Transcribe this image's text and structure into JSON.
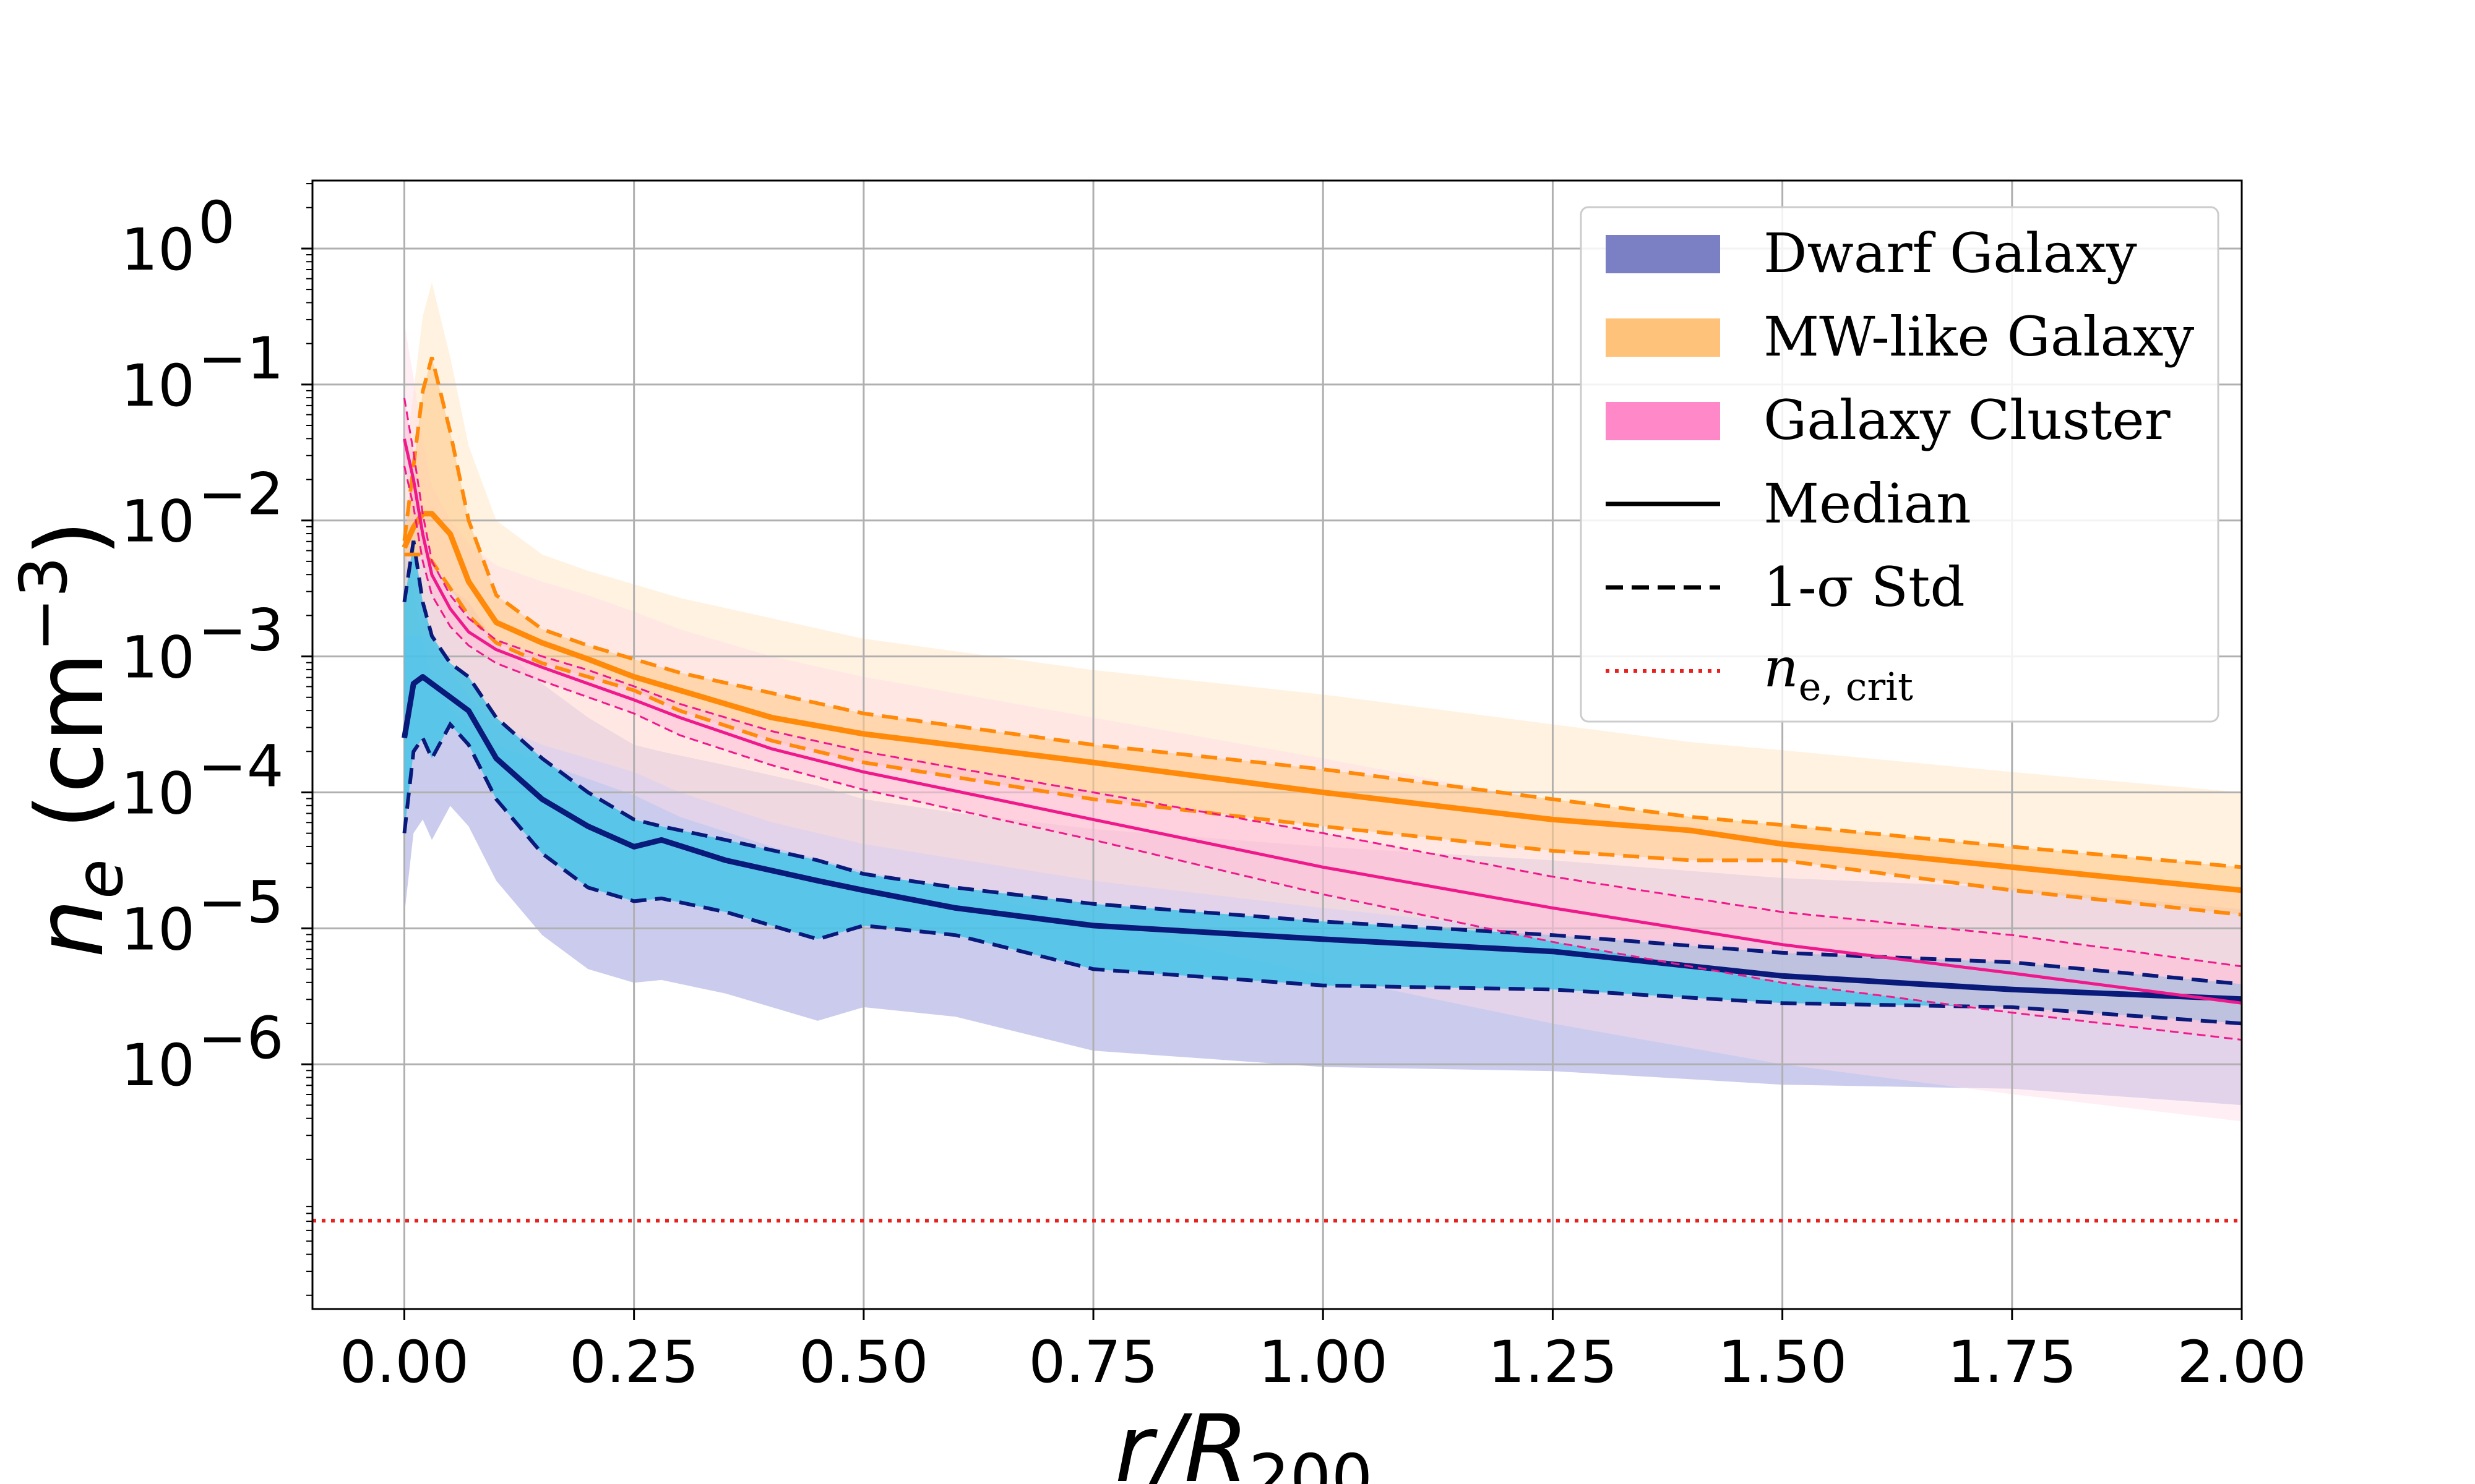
{
  "chart_data": {
    "type": "line",
    "title": "",
    "xlabel": "r/R200",
    "xlabel_main": "r/R",
    "xlabel_sub": "200",
    "ylabel": "n_e (cm^-3)",
    "ylabel_main": "n",
    "ylabel_sub": "e",
    "ylabel_unit_open": " (cm",
    "ylabel_unit_exp": "−3",
    "ylabel_unit_close": ")",
    "xlim": [
      -0.1,
      2.0
    ],
    "ylim_log10": [
      -7.8,
      0.5
    ],
    "grid": true,
    "legend_location": "top-right",
    "x_ticks": [
      {
        "value": 0.0,
        "label": "0.00"
      },
      {
        "value": 0.25,
        "label": "0.25"
      },
      {
        "value": 0.5,
        "label": "0.50"
      },
      {
        "value": 0.75,
        "label": "0.75"
      },
      {
        "value": 1.0,
        "label": "1.00"
      },
      {
        "value": 1.25,
        "label": "1.25"
      },
      {
        "value": 1.5,
        "label": "1.50"
      },
      {
        "value": 1.75,
        "label": "1.75"
      },
      {
        "value": 2.0,
        "label": "2.00"
      }
    ],
    "y_ticks": [
      {
        "value": 0,
        "base": "10",
        "exp": "0"
      },
      {
        "value": -1,
        "base": "10",
        "exp": "−1"
      },
      {
        "value": -2,
        "base": "10",
        "exp": "−2"
      },
      {
        "value": -3,
        "base": "10",
        "exp": "−3"
      },
      {
        "value": -4,
        "base": "10",
        "exp": "−4"
      },
      {
        "value": -5,
        "base": "10",
        "exp": "−5"
      },
      {
        "value": -6,
        "base": "10",
        "exp": "−6"
      }
    ],
    "legend": [
      {
        "label": "Dwarf Galaxy",
        "kind": "patch",
        "color": "#7b7fc4"
      },
      {
        "label": "MW-like Galaxy",
        "kind": "patch",
        "color": "#ffc27a"
      },
      {
        "label": "Galaxy Cluster",
        "kind": "patch",
        "color": "#ff88c8"
      },
      {
        "label": "Median",
        "kind": "solid",
        "color": "#000000"
      },
      {
        "label": "1-σ Std",
        "kind": "dashed",
        "color": "#000000"
      },
      {
        "label": "n",
        "sub": "e, crit",
        "kind": "dotted",
        "color": "#e8211f"
      }
    ],
    "critical_density": {
      "log10_value": -7.15,
      "color": "#e8211f"
    },
    "series": [
      {
        "name": "Dwarf Galaxy",
        "color": "#0a1a7a",
        "band_color": "#45c3e8",
        "outer_color": "#8c8fd6",
        "x": [
          0.0,
          0.01,
          0.02,
          0.03,
          0.05,
          0.07,
          0.1,
          0.15,
          0.2,
          0.25,
          0.28,
          0.35,
          0.45,
          0.5,
          0.6,
          0.75,
          1.0,
          1.25,
          1.5,
          1.75,
          2.0
        ],
        "median": [
          -3.6,
          -3.2,
          -3.15,
          -3.2,
          -3.3,
          -3.4,
          -3.75,
          -4.05,
          -4.25,
          -4.4,
          -4.35,
          -4.5,
          -4.65,
          -4.72,
          -4.85,
          -4.98,
          -5.08,
          -5.17,
          -5.35,
          -5.45,
          -5.52
        ],
        "upper": [
          -2.6,
          -2.15,
          -2.6,
          -2.85,
          -3.05,
          -3.15,
          -3.45,
          -3.75,
          -4.0,
          -4.2,
          -4.25,
          -4.35,
          -4.5,
          -4.6,
          -4.7,
          -4.82,
          -4.95,
          -5.05,
          -5.18,
          -5.25,
          -5.41
        ],
        "lower": [
          -4.3,
          -3.7,
          -3.6,
          -3.75,
          -3.5,
          -3.65,
          -4.05,
          -4.45,
          -4.7,
          -4.8,
          -4.78,
          -4.88,
          -5.08,
          -4.98,
          -5.05,
          -5.3,
          -5.42,
          -5.45,
          -5.55,
          -5.58,
          -5.7
        ]
      },
      {
        "name": "MW-like Galaxy",
        "color": "#ff8a0a",
        "band_color": "#ffc98a",
        "outer_color": "#ffe2bd",
        "x": [
          0.0,
          0.01,
          0.02,
          0.03,
          0.05,
          0.07,
          0.1,
          0.15,
          0.2,
          0.25,
          0.3,
          0.4,
          0.5,
          0.75,
          1.0,
          1.25,
          1.4,
          1.5,
          1.75,
          2.0
        ],
        "median": [
          -2.2,
          -2.05,
          -1.95,
          -1.95,
          -2.1,
          -2.45,
          -2.75,
          -2.9,
          -3.02,
          -3.15,
          -3.25,
          -3.45,
          -3.57,
          -3.78,
          -4.0,
          -4.2,
          -4.28,
          -4.38,
          -4.55,
          -4.72
        ],
        "upper": [
          -2.15,
          -1.6,
          -1.05,
          -0.8,
          -1.35,
          -2.0,
          -2.55,
          -2.8,
          -2.92,
          -3.02,
          -3.12,
          -3.27,
          -3.42,
          -3.65,
          -3.83,
          -4.05,
          -4.18,
          -4.24,
          -4.4,
          -4.55
        ],
        "lower": [
          -2.25,
          -2.25,
          -2.25,
          -2.3,
          -2.5,
          -2.7,
          -2.9,
          -3.05,
          -3.15,
          -3.25,
          -3.4,
          -3.62,
          -3.78,
          -4.05,
          -4.25,
          -4.43,
          -4.5,
          -4.5,
          -4.72,
          -4.9
        ]
      },
      {
        "name": "Galaxy Cluster",
        "color": "#f0198c",
        "band_color": "#ffc0d8",
        "outer_color": "#ffdbe8",
        "x": [
          0.0,
          0.01,
          0.02,
          0.03,
          0.05,
          0.07,
          0.1,
          0.15,
          0.2,
          0.25,
          0.3,
          0.4,
          0.5,
          0.75,
          1.0,
          1.25,
          1.5,
          1.75,
          2.0
        ],
        "median": [
          -1.4,
          -1.7,
          -2.1,
          -2.4,
          -2.65,
          -2.82,
          -2.95,
          -3.08,
          -3.2,
          -3.32,
          -3.45,
          -3.68,
          -3.85,
          -4.2,
          -4.55,
          -4.85,
          -5.12,
          -5.33,
          -5.55
        ],
        "upper": [
          -1.1,
          -1.5,
          -1.95,
          -2.3,
          -2.55,
          -2.72,
          -2.88,
          -3.0,
          -3.1,
          -3.22,
          -3.35,
          -3.55,
          -3.7,
          -4.0,
          -4.3,
          -4.62,
          -4.88,
          -5.05,
          -5.28
        ],
        "lower": [
          -1.6,
          -1.9,
          -2.3,
          -2.55,
          -2.78,
          -2.92,
          -3.05,
          -3.18,
          -3.3,
          -3.42,
          -3.58,
          -3.8,
          -3.98,
          -4.35,
          -4.75,
          -5.1,
          -5.4,
          -5.62,
          -5.82
        ]
      }
    ]
  }
}
